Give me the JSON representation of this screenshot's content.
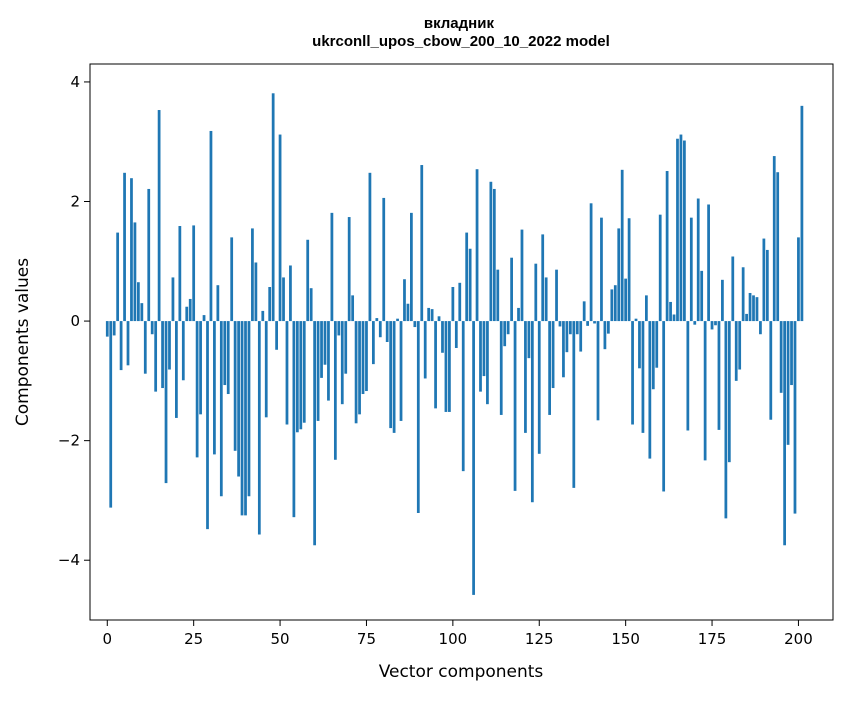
{
  "chart_data": {
    "type": "bar",
    "title_line1": "вкладник",
    "title_line2": "ukrconll_upos_cbow_200_10_2022 model",
    "xlabel": "Vector components",
    "ylabel": "Components values",
    "xlim": [
      -5,
      210
    ],
    "ylim": [
      -5,
      4.3
    ],
    "xticks": [
      0,
      25,
      50,
      75,
      100,
      125,
      150,
      175,
      200
    ],
    "xtick_labels": [
      "0",
      "25",
      "50",
      "75",
      "100",
      "125",
      "150",
      "175",
      "200"
    ],
    "yticks": [
      -4,
      -2,
      0,
      2,
      4
    ],
    "ytick_labels": [
      "−4",
      "−2",
      "0",
      "2",
      "4"
    ],
    "bar_color": "#1f77b4",
    "grid": false,
    "values": [
      -0.26,
      -3.12,
      -0.24,
      1.48,
      -0.82,
      2.48,
      -0.74,
      2.39,
      1.65,
      0.65,
      0.3,
      -0.88,
      2.21,
      -0.22,
      -1.18,
      3.53,
      -1.12,
      -2.71,
      -0.81,
      0.73,
      -1.62,
      1.59,
      -0.99,
      0.24,
      0.37,
      1.6,
      -2.28,
      -1.56,
      0.1,
      -3.48,
      3.18,
      -2.23,
      0.6,
      -2.93,
      -1.07,
      -1.22,
      1.4,
      -2.17,
      -2.6,
      -3.25,
      -3.25,
      -2.93,
      1.55,
      0.98,
      -3.57,
      0.17,
      -1.61,
      0.57,
      3.81,
      -0.48,
      3.12,
      0.73,
      -1.73,
      0.93,
      -3.28,
      -1.86,
      -1.81,
      -1.7,
      1.36,
      0.55,
      -3.75,
      -1.67,
      -0.95,
      -0.73,
      -1.33,
      1.81,
      -2.32,
      -0.24,
      -1.39,
      -0.88,
      1.74,
      0.43,
      -1.71,
      -1.56,
      -1.22,
      -1.17,
      2.48,
      -0.72,
      0.05,
      -0.27,
      2.06,
      -0.35,
      -1.79,
      -1.87,
      0.04,
      -1.67,
      0.7,
      0.29,
      1.81,
      -0.1,
      -3.21,
      2.61,
      -0.96,
      0.22,
      0.2,
      -1.46,
      0.08,
      -0.53,
      -1.52,
      -1.52,
      0.57,
      -0.45,
      0.64,
      -2.51,
      1.48,
      1.21,
      -4.58,
      2.54,
      -1.18,
      -0.92,
      -1.39,
      2.33,
      2.21,
      0.86,
      -1.57,
      -0.42,
      -0.22,
      1.06,
      -2.84,
      0.22,
      1.53,
      -1.87,
      -0.62,
      -3.03,
      0.96,
      -2.22,
      1.45,
      0.73,
      -1.57,
      -1.12,
      0.86,
      -0.09,
      -0.94,
      -0.52,
      -0.22,
      -2.79,
      -0.22,
      -0.51,
      0.33,
      -0.08,
      1.97,
      -0.04,
      -1.66,
      1.73,
      -0.47,
      -0.21,
      0.53,
      0.6,
      1.55,
      2.53,
      0.71,
      1.72,
      -1.73,
      0.04,
      -0.79,
      -1.87,
      0.43,
      -2.3,
      -1.14,
      -0.78,
      1.78,
      -2.85,
      2.51,
      0.32,
      0.11,
      3.05,
      3.12,
      3.02,
      -1.83,
      1.73,
      -0.06,
      2.05,
      0.84,
      -2.33,
      1.95,
      -0.14,
      -0.07,
      -1.82,
      0.69,
      -3.3,
      -2.36,
      1.08,
      -1.0,
      -0.81,
      0.9,
      0.12,
      0.47,
      0.43,
      0.4,
      -0.22,
      1.38,
      1.19,
      -1.65,
      2.76,
      2.49,
      -1.2,
      -3.75,
      -2.07,
      -1.07,
      -3.22,
      1.4,
      3.6
    ]
  }
}
